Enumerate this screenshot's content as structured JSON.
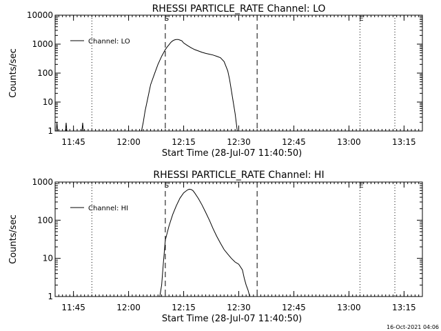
{
  "footer_timestamp": "16-Oct-2021 04:06",
  "chart_data": [
    {
      "type": "line",
      "title": "RHESSI PARTICLE_RATE Channel: LO",
      "xlabel": "Start Time (28-Jul-07 11:40:50)",
      "ylabel": "Counts/sec",
      "yscale": "log",
      "xlim_min": [
        0,
        100
      ],
      "ylim": [
        1,
        10000
      ],
      "xticks": [
        {
          "m": 5,
          "label": "11:45"
        },
        {
          "m": 20,
          "label": "12:00"
        },
        {
          "m": 35,
          "label": "12:15"
        },
        {
          "m": 50,
          "label": "12:30"
        },
        {
          "m": 65,
          "label": "12:45"
        },
        {
          "m": 80,
          "label": "13:00"
        },
        {
          "m": 95,
          "label": "13:15"
        }
      ],
      "yticks": [
        {
          "v": 1,
          "label": "1"
        },
        {
          "v": 10,
          "label": "10"
        },
        {
          "v": 100,
          "label": "100"
        },
        {
          "v": 1000,
          "label": "1000"
        },
        {
          "v": 10000,
          "label": "10000"
        }
      ],
      "legend": "Channel: LO",
      "legend_position": "top-left",
      "markers": [
        {
          "m": 10,
          "style": "dotted"
        },
        {
          "m": 30,
          "style": "dashed",
          "label": "S"
        },
        {
          "m": 55,
          "style": "dashed"
        },
        {
          "m": 83,
          "style": "dotted",
          "label": "E"
        },
        {
          "m": 92.5,
          "style": "dotted"
        }
      ],
      "spikes_x": [
        0.5,
        3.0,
        7.5
      ],
      "series": [
        {
          "x": [
            23.5,
            24,
            24.5,
            25,
            26,
            27,
            28,
            29,
            30,
            30.5,
            31,
            31.5,
            32,
            32.5,
            33,
            33.5,
            34,
            34.5,
            35,
            36,
            37,
            38,
            39,
            40,
            41,
            42,
            43,
            44,
            45,
            46,
            47,
            47.5,
            48,
            48.5,
            49,
            49.3,
            49.6
          ],
          "y": [
            1,
            2,
            5,
            10,
            40,
            90,
            200,
            380,
            650,
            800,
            950,
            1150,
            1300,
            1400,
            1450,
            1450,
            1380,
            1300,
            1100,
            900,
            750,
            650,
            580,
            520,
            480,
            450,
            420,
            380,
            340,
            250,
            120,
            60,
            25,
            10,
            4,
            2,
            1
          ]
        }
      ]
    },
    {
      "type": "line",
      "title": "RHESSI PARTICLE_RATE Channel: HI",
      "xlabel": "Start Time (28-Jul-07 11:40:50)",
      "ylabel": "Counts/sec",
      "yscale": "log",
      "xlim_min": [
        0,
        100
      ],
      "ylim": [
        1,
        1000
      ],
      "xticks": [
        {
          "m": 5,
          "label": "11:45"
        },
        {
          "m": 20,
          "label": "12:00"
        },
        {
          "m": 35,
          "label": "12:15"
        },
        {
          "m": 50,
          "label": "12:30"
        },
        {
          "m": 65,
          "label": "12:45"
        },
        {
          "m": 80,
          "label": "13:00"
        },
        {
          "m": 95,
          "label": "13:15"
        }
      ],
      "yticks": [
        {
          "v": 1,
          "label": "1"
        },
        {
          "v": 10,
          "label": "10"
        },
        {
          "v": 100,
          "label": "100"
        },
        {
          "v": 1000,
          "label": "1000"
        }
      ],
      "legend": "Channel: HI",
      "legend_position": "top-left",
      "markers": [
        {
          "m": 10,
          "style": "dotted"
        },
        {
          "m": 30,
          "style": "dashed",
          "label": "S"
        },
        {
          "m": 55,
          "style": "dashed"
        },
        {
          "m": 83,
          "style": "dotted",
          "label": "E"
        },
        {
          "m": 92.5,
          "style": "dotted"
        }
      ],
      "spikes_x": [],
      "series": [
        {
          "x": [
            28.5,
            29,
            29.5,
            30,
            31,
            32,
            33,
            34,
            35,
            36,
            36.5,
            37,
            37.5,
            38,
            39,
            40,
            41,
            42,
            43,
            44,
            45,
            46,
            47,
            48,
            49,
            50,
            51,
            51.5,
            52,
            52.5,
            53
          ],
          "y": [
            1,
            2,
            8,
            30,
            70,
            140,
            240,
            380,
            520,
            620,
            650,
            640,
            600,
            520,
            370,
            250,
            160,
            100,
            60,
            38,
            25,
            17,
            13,
            10,
            8,
            7,
            5,
            3,
            2,
            1.5,
            1
          ]
        }
      ]
    }
  ]
}
